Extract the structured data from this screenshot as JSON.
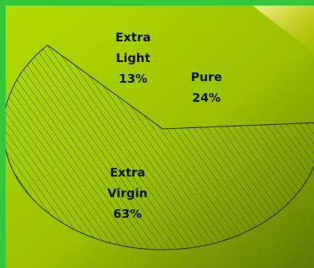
{
  "chart_data": {
    "type": "pie",
    "title": "",
    "slices": [
      {
        "label": [
          "Pure",
          "24%"
        ],
        "value": 24
      },
      {
        "label": [
          "Extra",
          "Light",
          "13%"
        ],
        "value": 13
      },
      {
        "label": [
          "Extra",
          "Virgin",
          "63%"
        ],
        "value": 63,
        "hatched": true
      }
    ]
  },
  "colors": {
    "frame": "#37c53a",
    "background_light": "#b4dc00",
    "background_dark": "#5f7a05",
    "slice_fill": "#9aca00",
    "slice_hatch": "#3d5a00",
    "outline": "#1e2a00",
    "corner_accent": "#f2e61a"
  }
}
